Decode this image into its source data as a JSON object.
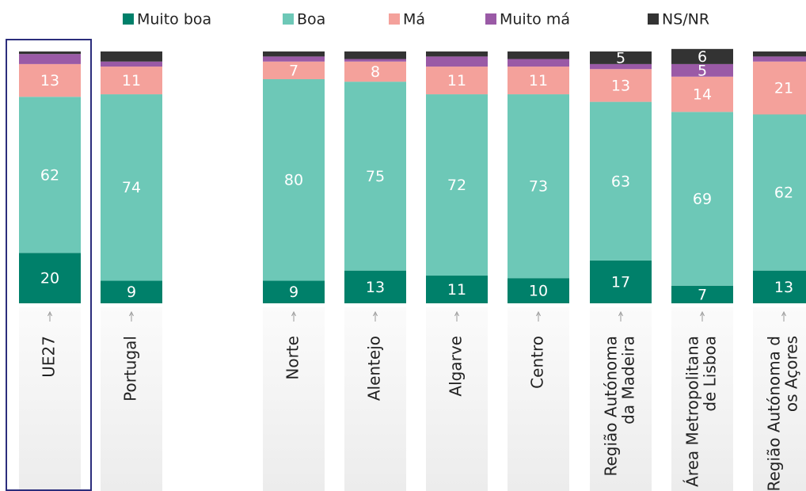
{
  "chart_data": {
    "type": "stacked_bar",
    "categories": [
      [
        "UE27"
      ],
      [
        "Portugal"
      ],
      [
        "Norte"
      ],
      [
        "Alentejo"
      ],
      [
        "Algarve"
      ],
      [
        "Centro"
      ],
      [
        "Região Autónoma",
        "da Madeira"
      ],
      [
        "Área Metropolitana",
        "de Lisboa"
      ],
      [
        "Região Autónoma d",
        "os Açores"
      ]
    ],
    "series": [
      {
        "name": "Muito boa",
        "color": "#00806a",
        "values": [
          20,
          9,
          9,
          13,
          11,
          10,
          17,
          7,
          13
        ]
      },
      {
        "name": "Boa",
        "color": "#6dc8b7",
        "values": [
          62,
          74,
          80,
          75,
          72,
          73,
          63,
          69,
          62
        ]
      },
      {
        "name": "Má",
        "color": "#f4a19b",
        "values": [
          13,
          11,
          7,
          8,
          11,
          11,
          13,
          14,
          21
        ]
      },
      {
        "name": "Muito má",
        "color": "#9a5aa6",
        "values": [
          4,
          2,
          2,
          1,
          4,
          3,
          2,
          5,
          2
        ]
      },
      {
        "name": "NS/NR",
        "color": "#333333",
        "values": [
          1,
          4,
          2,
          3,
          2,
          3,
          5,
          6,
          2
        ]
      }
    ],
    "legend": "top"
  }
}
